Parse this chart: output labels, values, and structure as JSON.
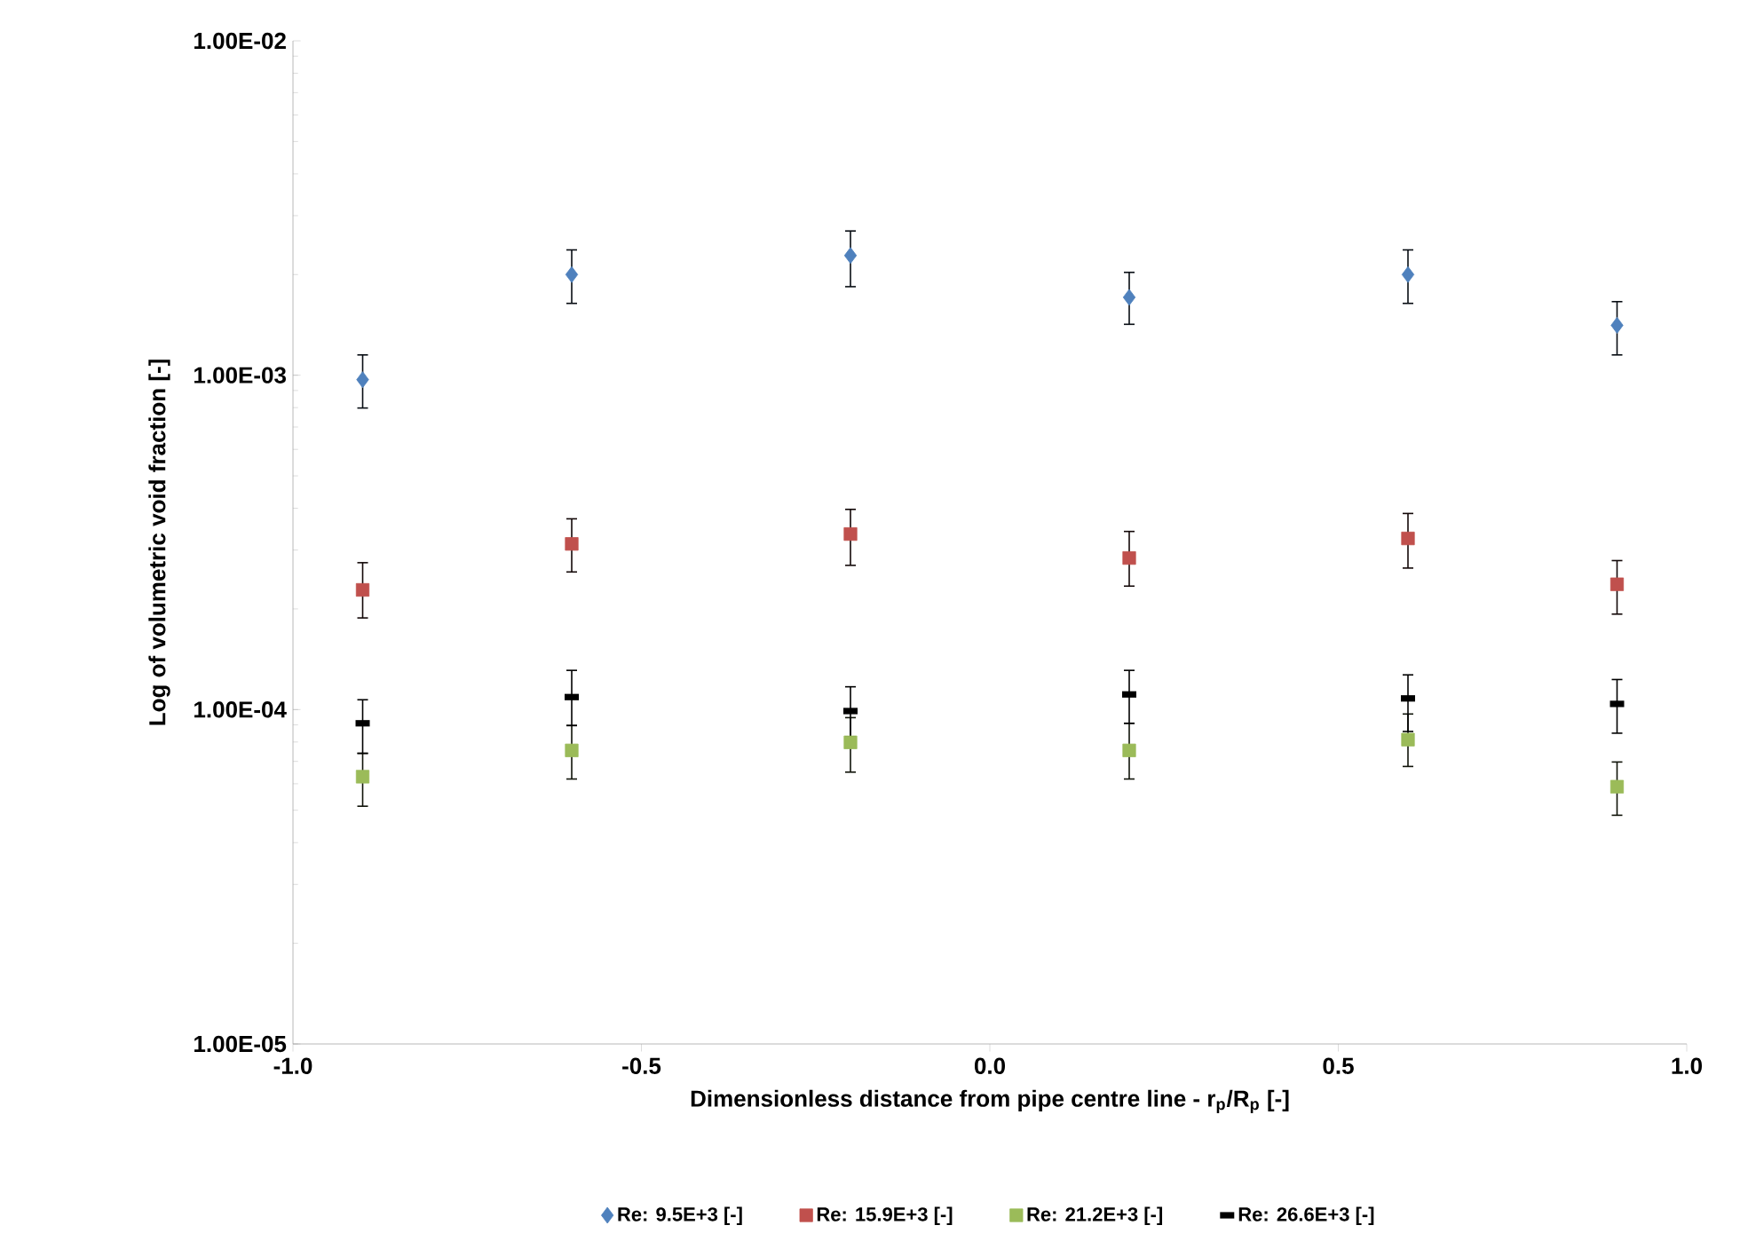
{
  "chart_data": {
    "type": "scatter",
    "xlabel": "Dimensionless distance from pipe centre line  - r$_{p}$/R$_{p}$ [-]",
    "ylabel": "Log of volumetric void fraction [-]",
    "x": [
      -0.9,
      -0.6,
      -0.2,
      0.2,
      0.6,
      0.9
    ],
    "xlim": [
      -1.0,
      1.0
    ],
    "xticks": [
      {
        "value": -1.0,
        "label": "-1.0"
      },
      {
        "value": -0.5,
        "label": "-0.5"
      },
      {
        "value": 0.0,
        "label": "0.0"
      },
      {
        "value": 0.5,
        "label": "0.5"
      },
      {
        "value": 1.0,
        "label": "1.0"
      }
    ],
    "ylim": [
      1e-05,
      0.01
    ],
    "yticks": [
      {
        "value": 1e-05,
        "label": "1.00E-05"
      },
      {
        "value": 0.0001,
        "label": "1.00E-04"
      },
      {
        "value": 0.001,
        "label": "1.00E-03"
      },
      {
        "value": 0.01,
        "label": "1.00E-02"
      }
    ],
    "log": "y",
    "grid": false,
    "legend": "bottom",
    "series": [
      {
        "name": "Re: 9.5E+3 [-]",
        "color": "#4f81bd",
        "marker": "diamond",
        "values": [
          0.00097,
          0.002,
          0.00228,
          0.00171,
          0.002,
          0.00141
        ],
        "errors": [
          [
            0.000798,
            0.00115
          ],
          [
            0.00164,
            0.00237
          ],
          [
            0.00184,
            0.0027
          ],
          [
            0.00142,
            0.00203
          ],
          [
            0.00164,
            0.00237
          ],
          [
            0.00115,
            0.00166
          ]
        ]
      },
      {
        "name": "Re: 15.9E+3 [-]",
        "color": "#c0504d",
        "marker": "square",
        "values": [
          0.000228,
          0.000313,
          0.000335,
          0.000284,
          0.000325,
          0.000237
        ],
        "errors": [
          [
            0.000188,
            0.000275
          ],
          [
            0.000258,
            0.000372
          ],
          [
            0.00027,
            0.000397
          ],
          [
            0.000234,
            0.000341
          ],
          [
            0.000265,
            0.000386
          ],
          [
            0.000193,
            0.000279
          ]
        ]
      },
      {
        "name": "Re: 21.2E+3 [-]",
        "color": "#9bbb59",
        "marker": "square",
        "values": [
          6.3e-05,
          7.55e-05,
          7.98e-05,
          7.55e-05,
          8.13e-05,
          5.88e-05
        ],
        "errors": [
          [
            5.14e-05,
            7.4e-05
          ],
          [
            6.2e-05,
            8.96e-05
          ],
          [
            6.5e-05,
            9.46e-05
          ],
          [
            6.2e-05,
            9.1e-05
          ],
          [
            6.76e-05,
            9.7e-05
          ],
          [
            4.83e-05,
            6.97e-05
          ]
        ]
      },
      {
        "name": "Re: 26.6E+3 [-]",
        "color": "#000000",
        "values": [
          9.1e-05,
          0.000109,
          9.9e-05,
          0.000111,
          0.000108,
          0.000104
        ],
        "errors": [
          [
            7.4e-05,
            0.000107
          ],
          [
            8.96e-05,
            0.000131
          ],
          [
            8.3e-05,
            0.000117
          ],
          [
            9.1e-05,
            0.000131
          ],
          [
            8.6e-05,
            0.000127
          ],
          [
            8.5e-05,
            0.000123
          ]
        ]
      }
    ]
  }
}
